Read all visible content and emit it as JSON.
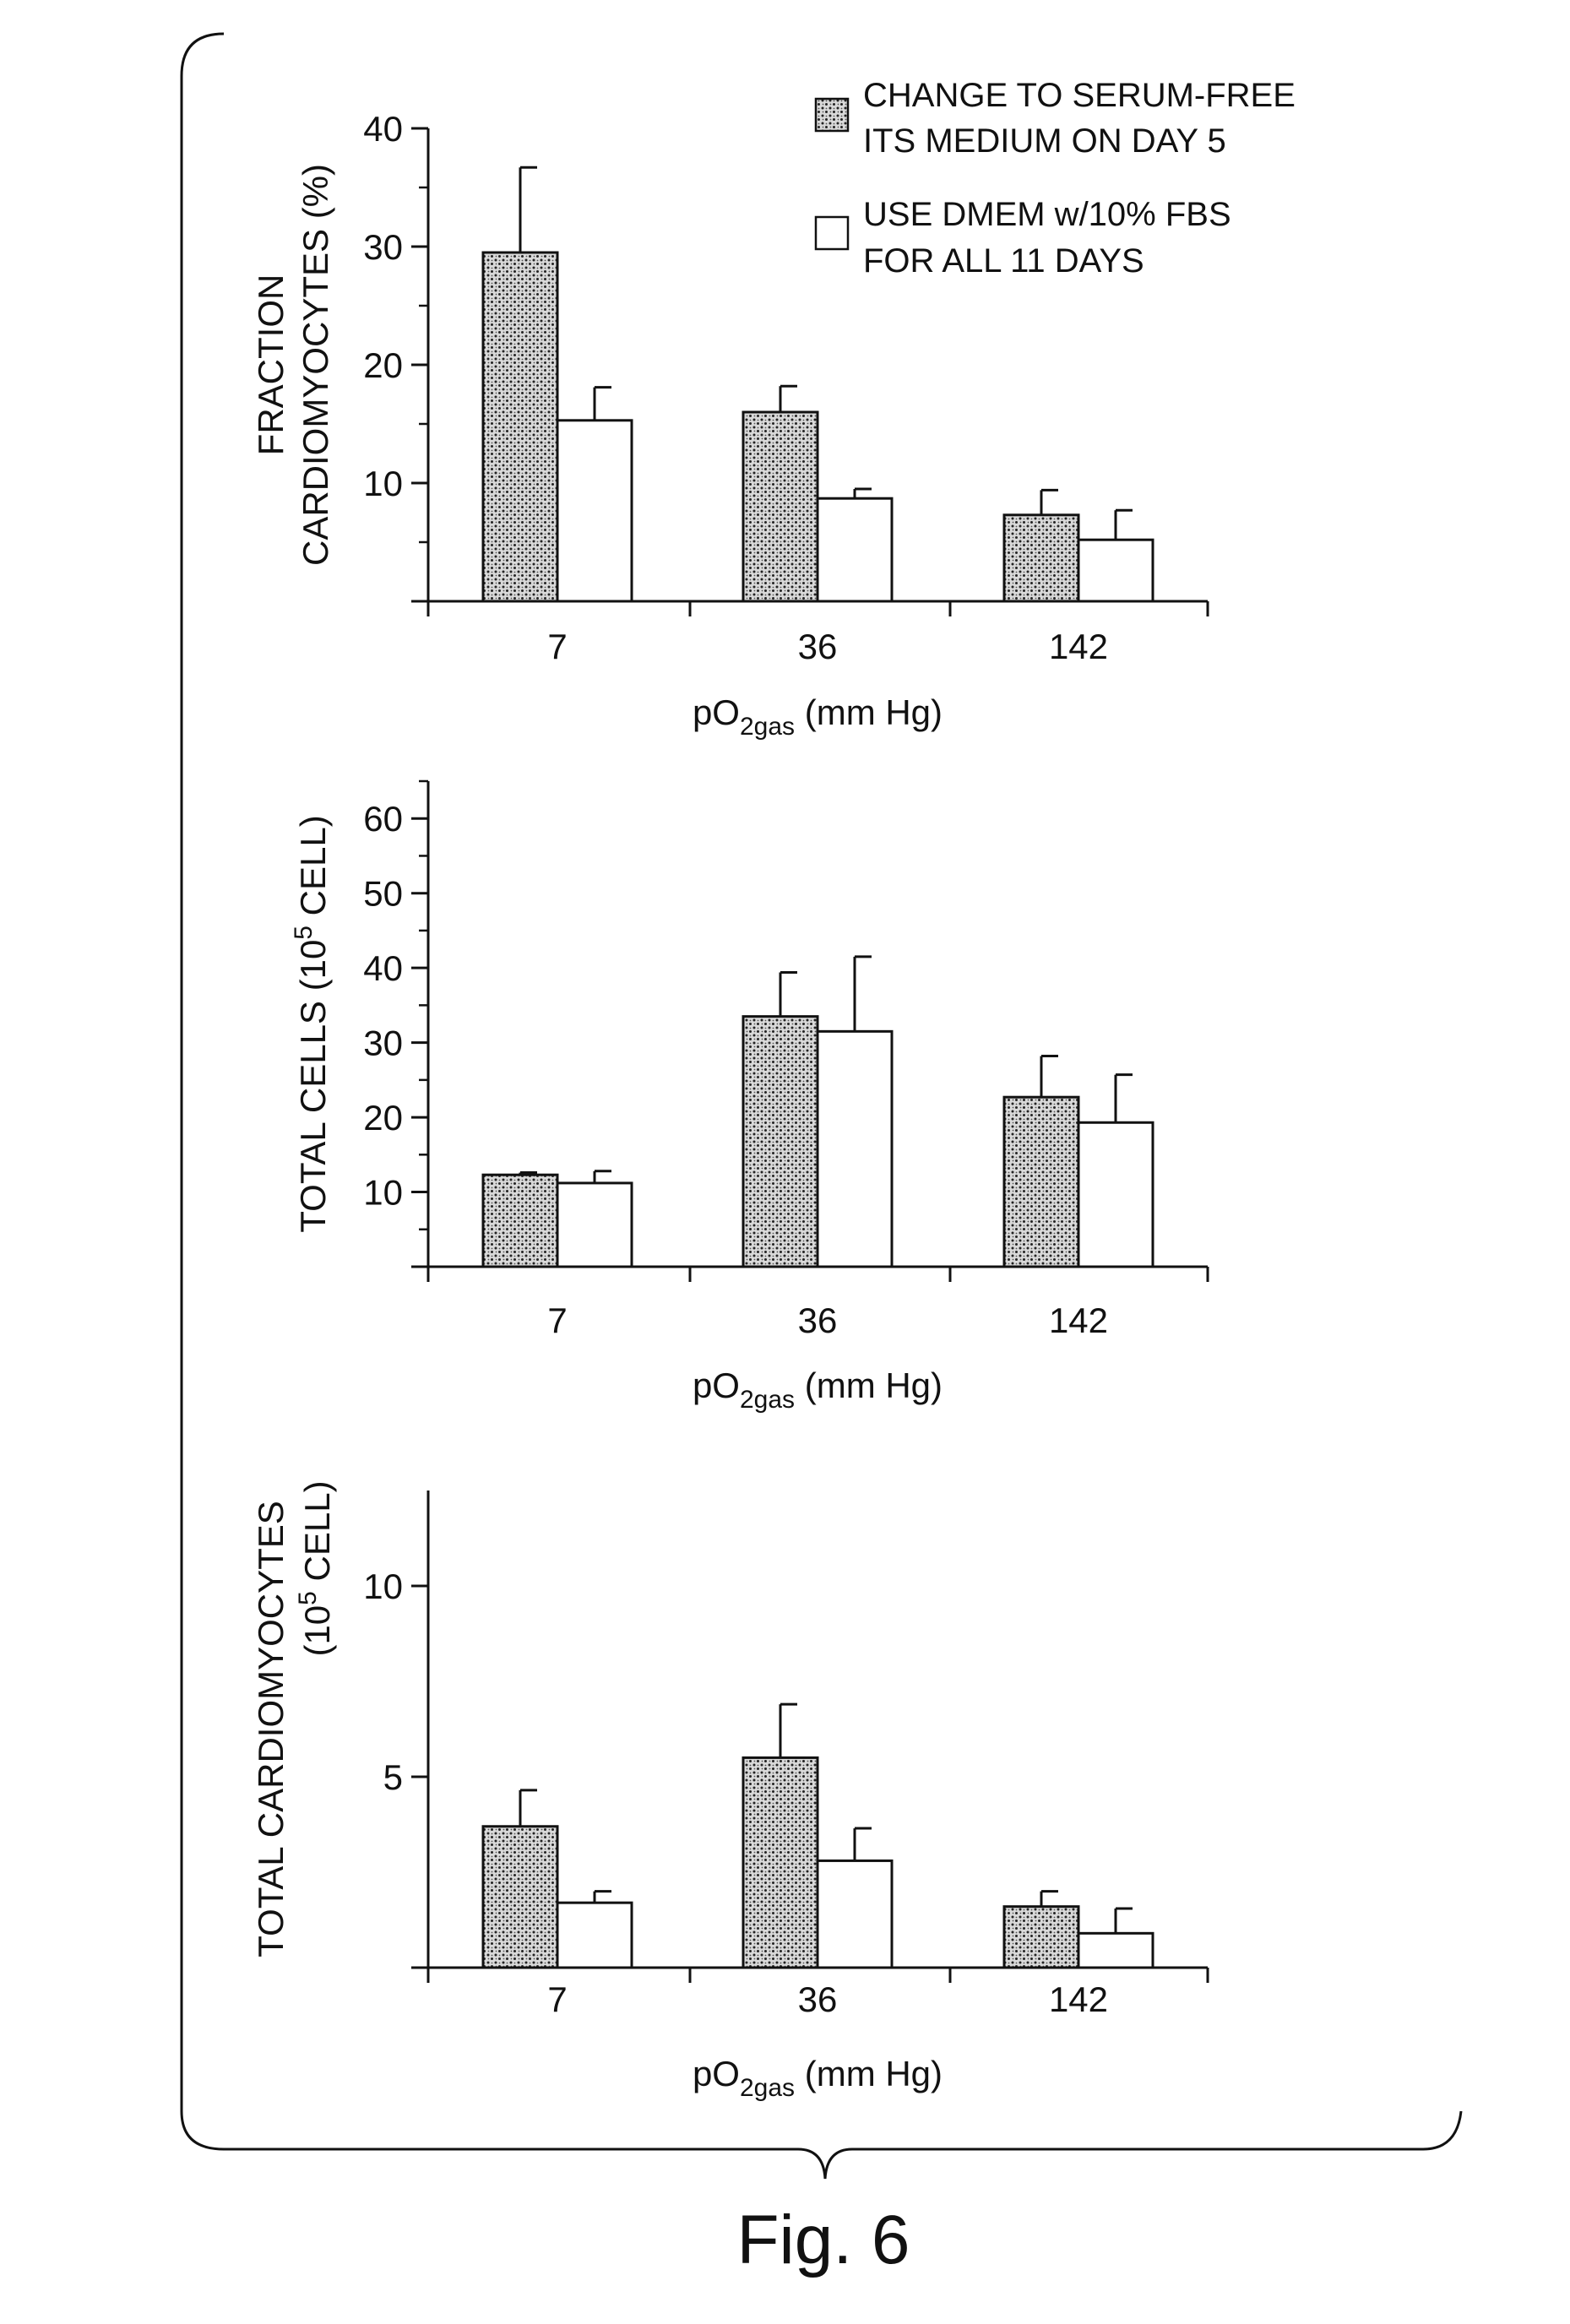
{
  "figure": {
    "caption": "Fig. 6"
  },
  "legend": {
    "items": [
      {
        "label_line1": "CHANGE TO SERUM-FREE",
        "label_line2": "ITS MEDIUM ON DAY 5",
        "style": "stippled"
      },
      {
        "label_line1": "USE DMEM w/10% FBS",
        "label_line2": "FOR ALL 11 DAYS",
        "style": "open"
      }
    ]
  },
  "chart_data": [
    {
      "type": "bar",
      "categories": [
        "7",
        "36",
        "142"
      ],
      "series": [
        {
          "values": [
            29.5,
            16,
            7.3
          ],
          "errors": [
            7.2,
            2.2,
            2.1
          ]
        },
        {
          "values": [
            15.3,
            8.7,
            5.2
          ],
          "errors": [
            2.8,
            0.8,
            2.5
          ]
        }
      ],
      "ylabel_line1": "FRACTION",
      "ylabel_line2": "CARDIOMYOCYTES (%)",
      "xlabel_main": "pO",
      "xlabel_sub": "2gas",
      "xlabel_tail": " (mm Hg)",
      "ylim": [
        0,
        40
      ],
      "yticks": [
        "40",
        "30",
        "20",
        "10"
      ],
      "ytick_values": [
        40,
        30,
        20,
        10
      ]
    },
    {
      "type": "bar",
      "categories": [
        "7",
        "36",
        "142"
      ],
      "series": [
        {
          "values": [
            12.3,
            33.5,
            22.7
          ],
          "errors": [
            0.3,
            5.9,
            5.5
          ]
        },
        {
          "values": [
            11.2,
            31.5,
            19.3
          ],
          "errors": [
            1.6,
            10,
            6.4
          ]
        }
      ],
      "ylabel_main": "TOTAL CELLS (10",
      "ylabel_sup": "5",
      "ylabel_tail": " CELL)",
      "xlabel_main": "pO",
      "xlabel_sub": "2gas",
      "xlabel_tail": " (mm Hg)",
      "ylim": [
        0,
        65
      ],
      "yticks": [
        "60",
        "50",
        "40",
        "30",
        "20",
        "10"
      ],
      "ytick_values": [
        60,
        50,
        40,
        30,
        20,
        10
      ]
    },
    {
      "type": "bar",
      "categories": [
        "7",
        "36",
        "142"
      ],
      "series": [
        {
          "values": [
            3.7,
            5.5,
            1.6
          ],
          "errors": [
            0.95,
            1.4,
            0.4
          ]
        },
        {
          "values": [
            1.7,
            2.8,
            0.9
          ],
          "errors": [
            0.3,
            0.85,
            0.65
          ]
        }
      ],
      "ylabel_line1": "TOTAL CARDIOMYOCYTES",
      "ylabel_line2_main": "(10",
      "ylabel_line2_sup": "5",
      "ylabel_line2_tail": " CELL)",
      "xlabel_main": "pO",
      "xlabel_sub": "2gas",
      "xlabel_tail": " (mm Hg)",
      "ylim": [
        0,
        12.5
      ],
      "yticks": [
        "10",
        "5"
      ],
      "ytick_values": [
        10,
        5
      ]
    }
  ]
}
